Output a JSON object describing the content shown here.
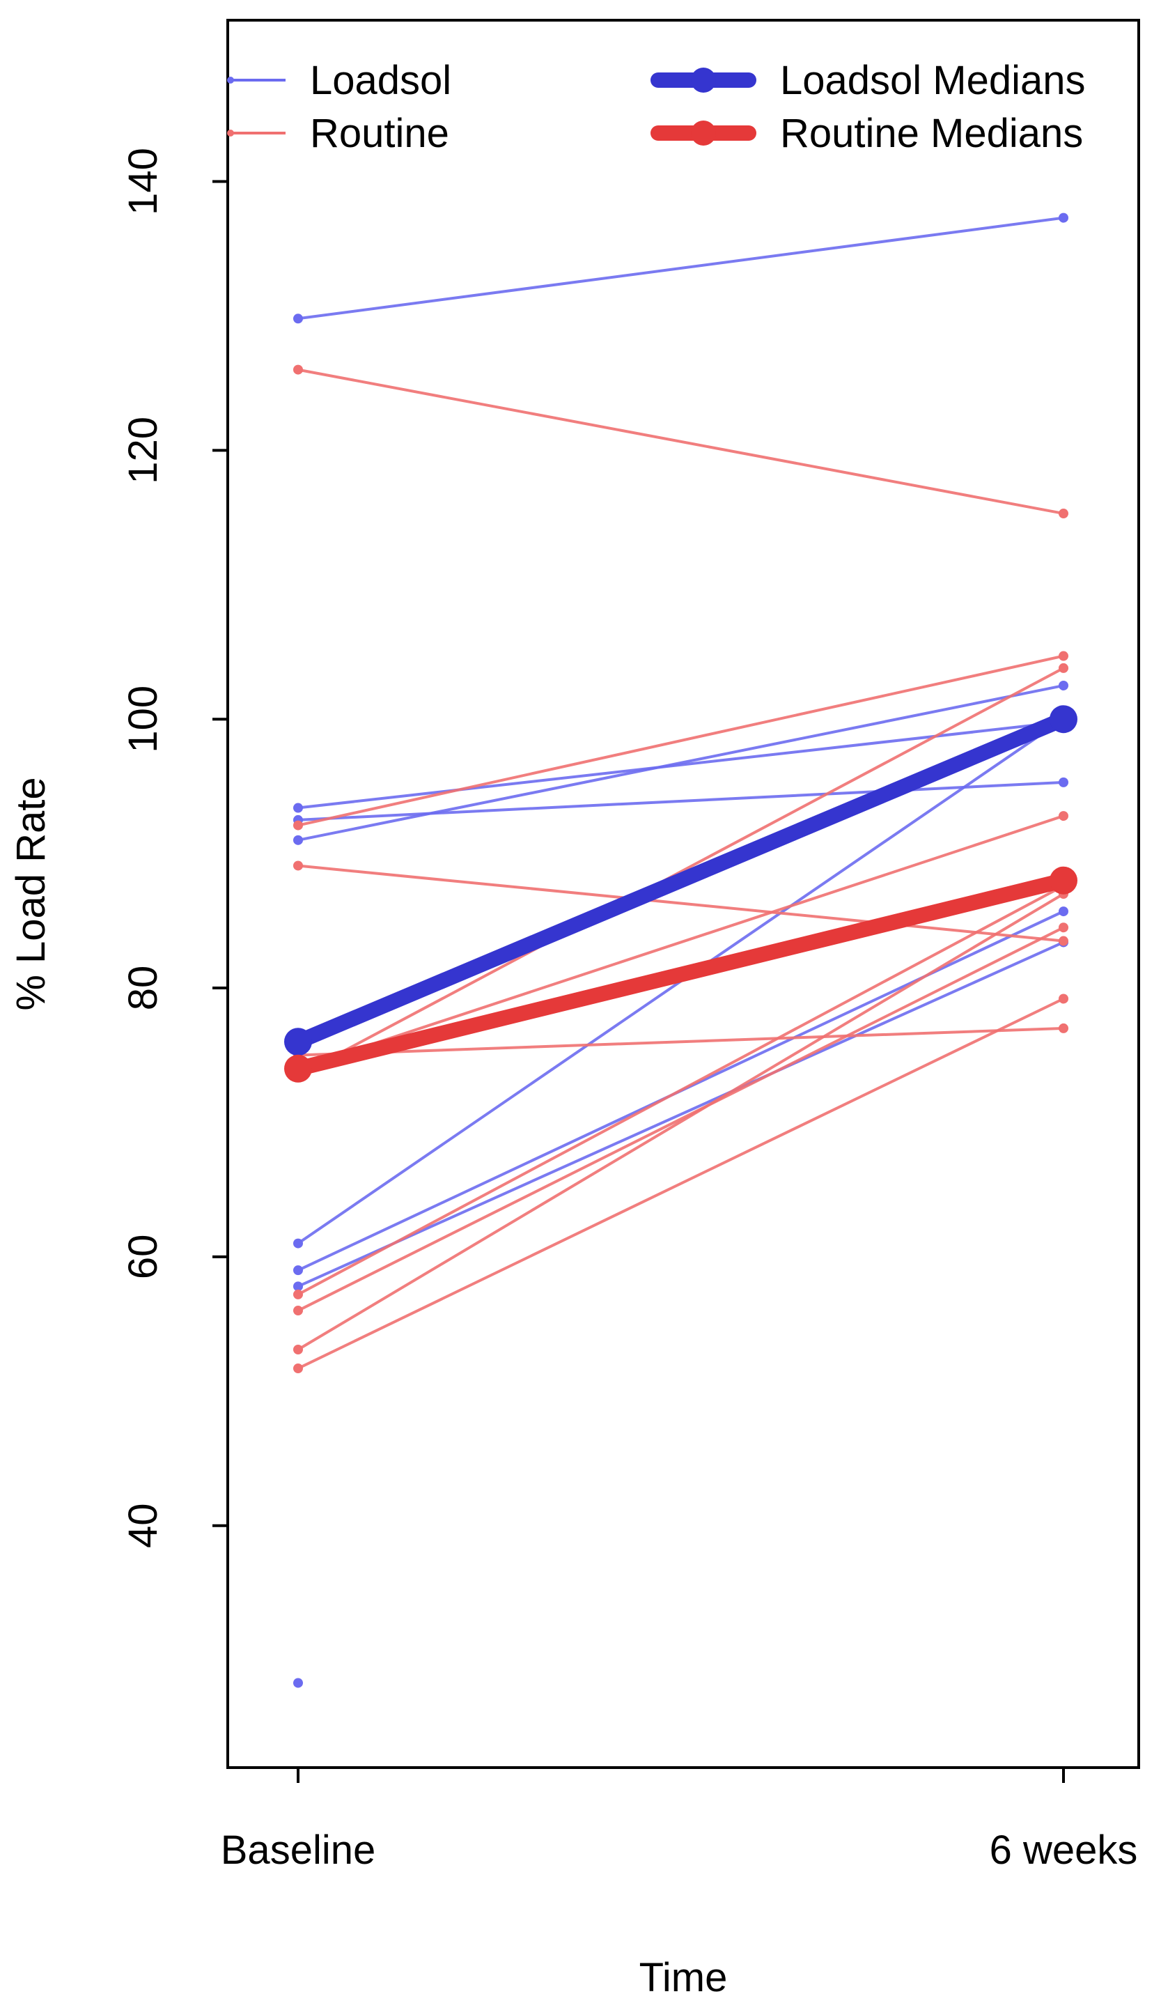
{
  "chart_data": {
    "type": "line",
    "title": "",
    "xlabel": "Time",
    "ylabel": "% Load Rate",
    "x_categories": [
      "Baseline",
      "6 weeks"
    ],
    "y_ticks": [
      "40",
      "60",
      "80",
      "100",
      "120",
      "140"
    ],
    "ylim": [
      22,
      152
    ],
    "grid": false,
    "legend_position": "top",
    "legend": [
      {
        "label": "Loadsol",
        "kind": "thin",
        "color": "#6B6BF0"
      },
      {
        "label": "Routine",
        "kind": "thin",
        "color": "#F07070"
      },
      {
        "label": "Loadsol Medians",
        "kind": "thick",
        "color": "#3535CF"
      },
      {
        "label": "Routine Medians",
        "kind": "thick",
        "color": "#E53939"
      }
    ],
    "series": [
      {
        "name": "Loadsol",
        "color": "#6B6BF0",
        "pairs": [
          [
            129.8,
            137.3
          ],
          [
            93.4,
            99.8
          ],
          [
            92.5,
            95.3
          ],
          [
            91.0,
            102.5
          ],
          [
            61.0,
            100.0
          ],
          [
            59.0,
            85.7
          ],
          [
            57.8,
            83.4
          ]
        ],
        "unpaired_baseline": [
          28.3
        ]
      },
      {
        "name": "Routine",
        "color": "#F07070",
        "pairs": [
          [
            126.0,
            115.3
          ],
          [
            92.1,
            104.7
          ],
          [
            89.1,
            83.5
          ],
          [
            75.0,
            77.0
          ],
          [
            74.0,
            92.8
          ],
          [
            73.5,
            103.8
          ],
          [
            57.2,
            87.6
          ],
          [
            56.0,
            84.5
          ],
          [
            53.1,
            87.0
          ],
          [
            51.7,
            79.2
          ]
        ],
        "unpaired_baseline": []
      },
      {
        "name": "Loadsol Medians",
        "color": "#3535CF",
        "values": [
          76.0,
          100.0
        ]
      },
      {
        "name": "Routine Medians",
        "color": "#E53939",
        "values": [
          74.0,
          88.0
        ]
      }
    ]
  }
}
